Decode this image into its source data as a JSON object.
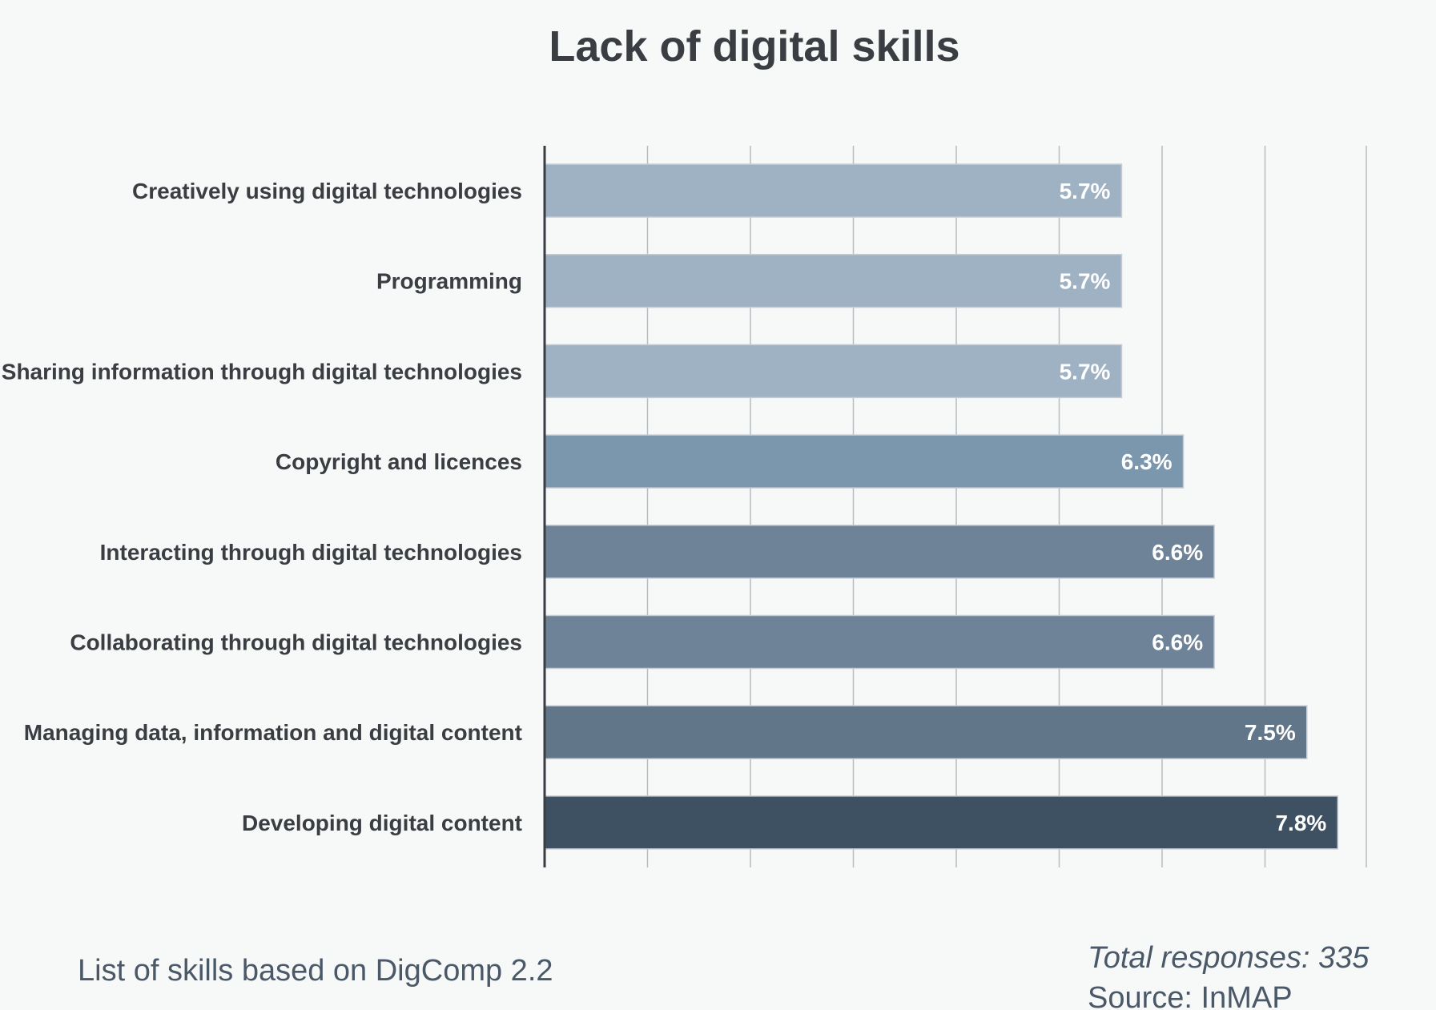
{
  "chart_data": {
    "type": "bar",
    "orientation": "horizontal",
    "title": "Lack of digital skills",
    "categories": [
      "Creatively using digital technologies",
      "Programming",
      "Sharing information through digital technologies",
      "Copyright and licences",
      "Interacting through digital technologies",
      "Collaborating through digital technologies",
      "Managing data, information and digital content",
      "Developing digital content"
    ],
    "values": [
      5.7,
      5.7,
      5.7,
      6.3,
      6.6,
      6.6,
      7.5,
      7.8
    ],
    "value_labels": [
      "5.7%",
      "5.7%",
      "5.7%",
      "6.3%",
      "6.6%",
      "6.6%",
      "7.5%",
      "7.8%"
    ],
    "bar_colors": [
      "#9fb2c4",
      "#9fb2c4",
      "#9fb2c4",
      "#7b97ad",
      "#6e8397",
      "#6e8397",
      "#627689",
      "#3d5163"
    ],
    "xlim": [
      0,
      8
    ],
    "grid": true,
    "xlabel": "",
    "ylabel": ""
  },
  "footer": {
    "note": "List of skills based on DigComp 2.2",
    "total": "Total responses: 335",
    "source": "Source: InMAP"
  }
}
